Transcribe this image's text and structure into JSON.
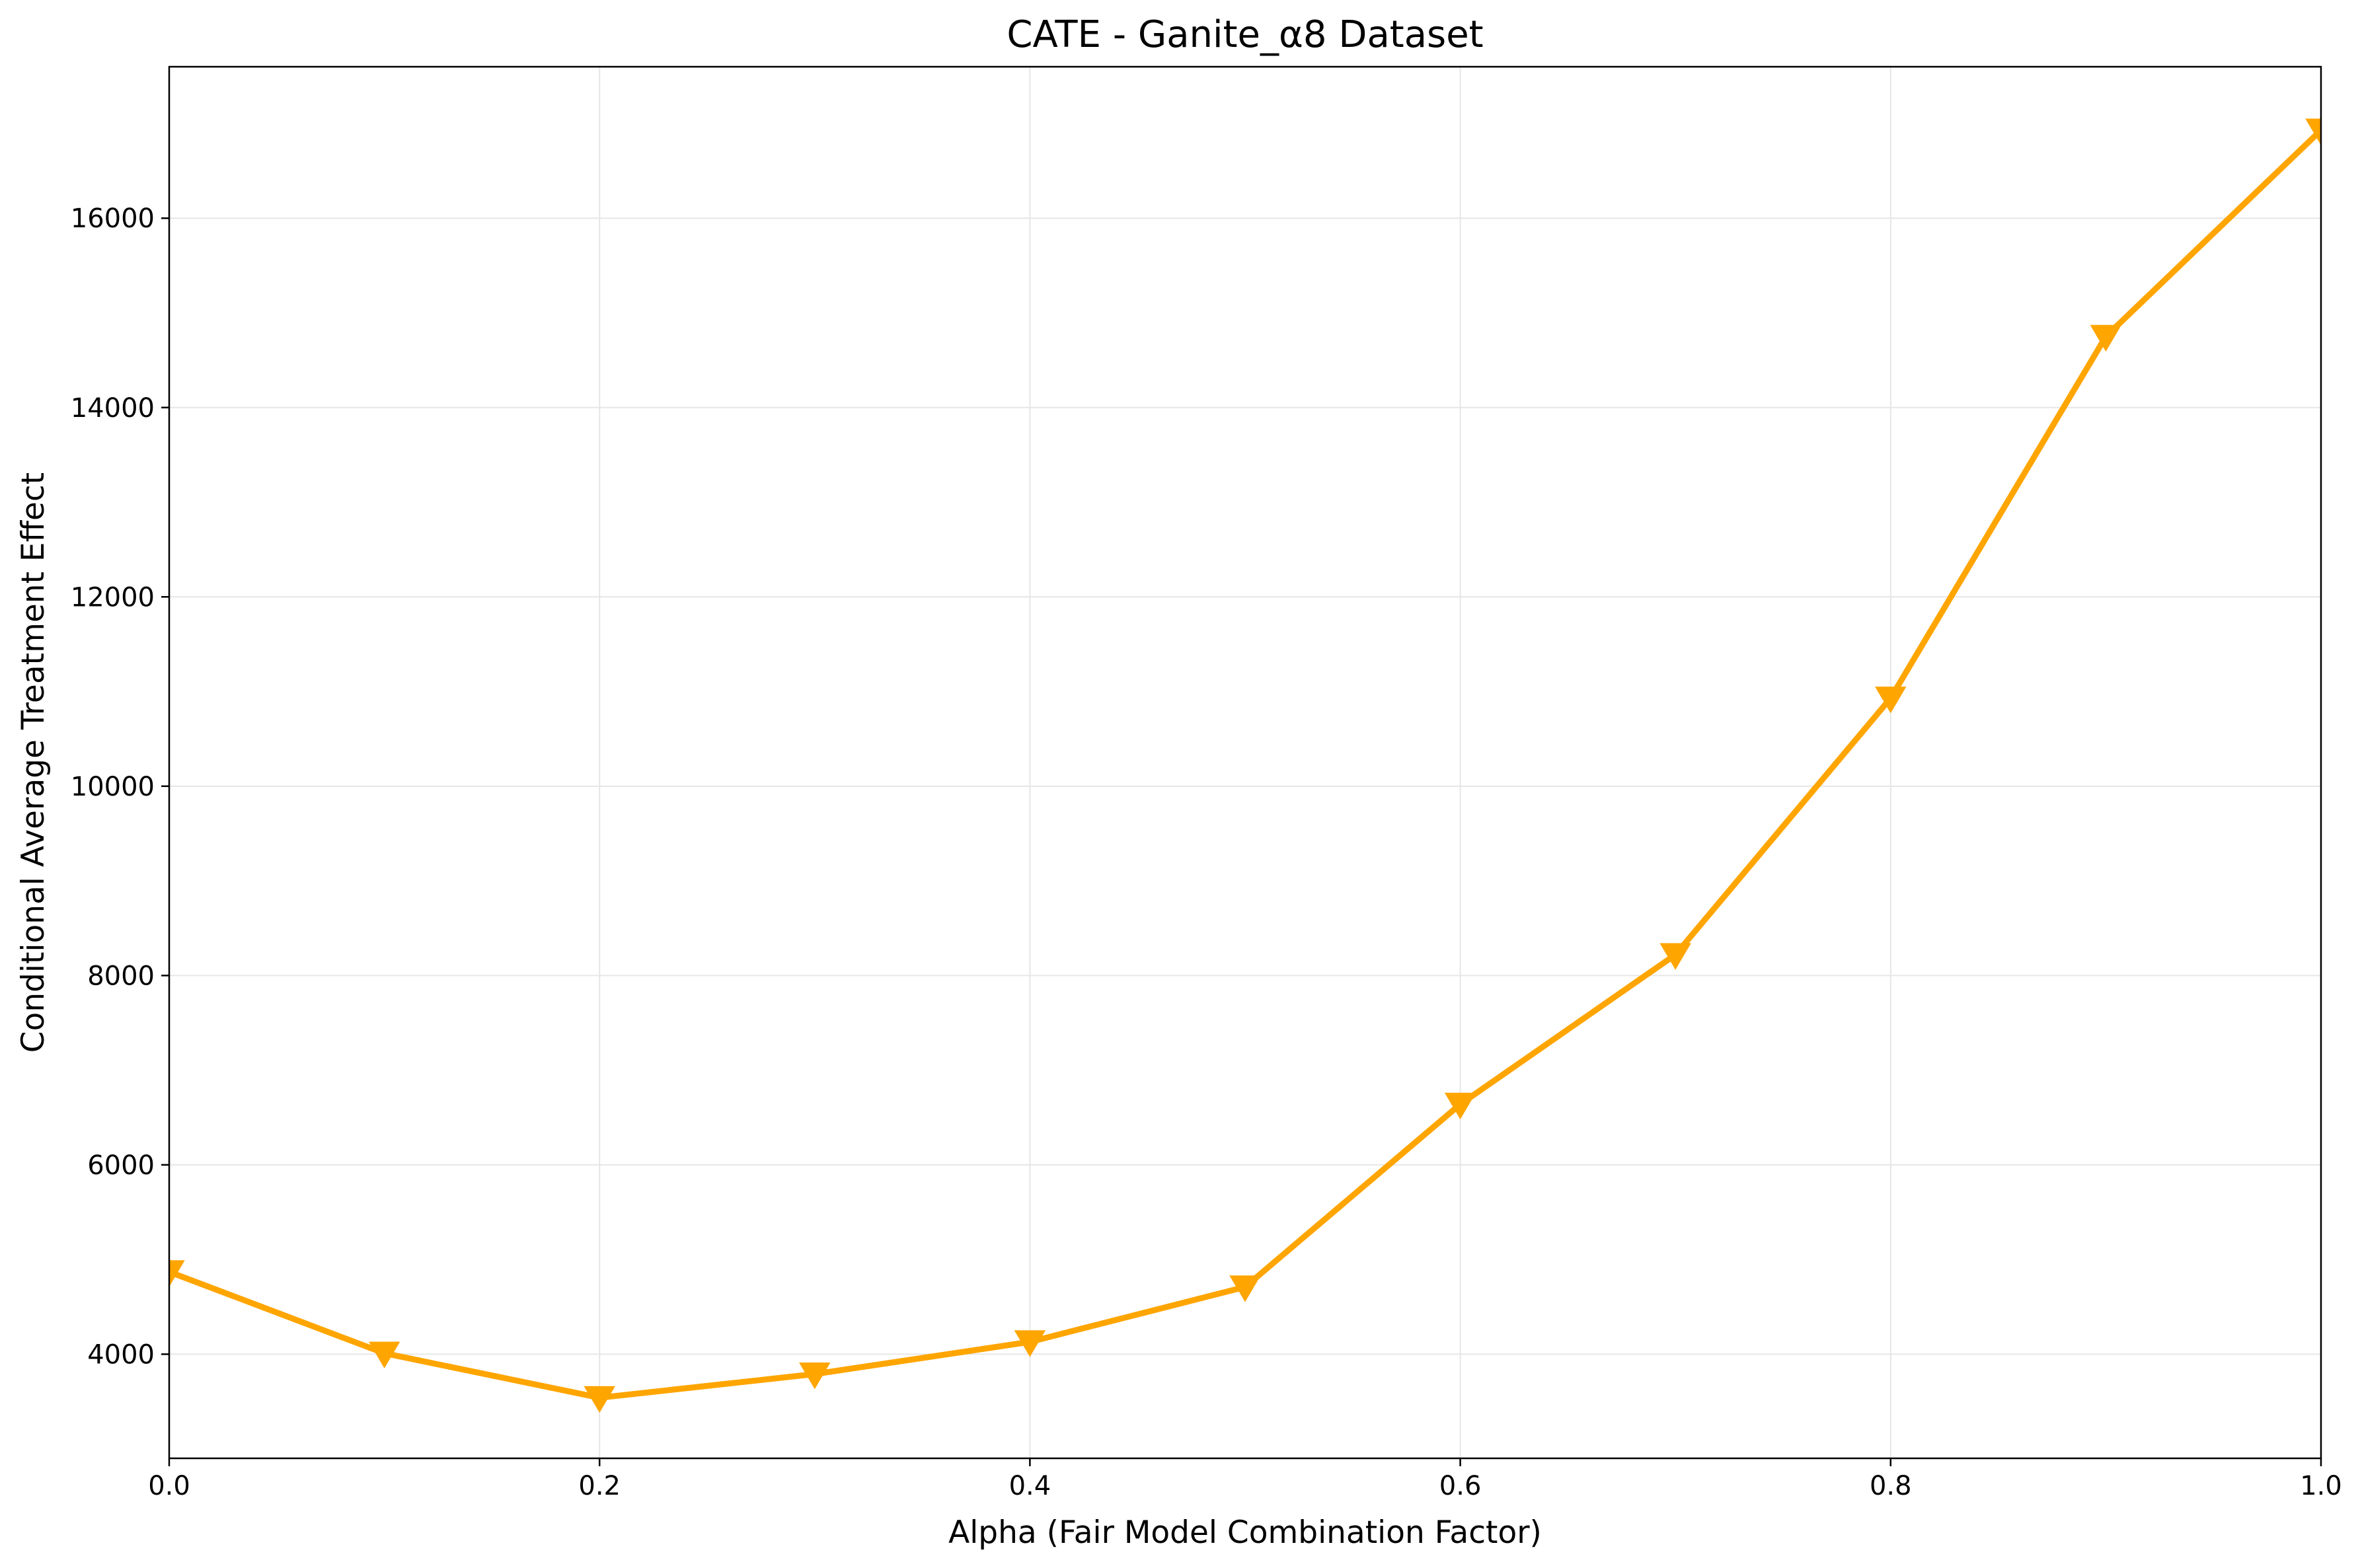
{
  "chart_data": {
    "type": "line",
    "title": "CATE - Ganite_α8 Dataset",
    "xlabel": "Alpha (Fair Model Combination Factor)",
    "ylabel": "Conditional Average Treatment Effect",
    "xlim": [
      0.0,
      1.0
    ],
    "ylim": [
      2900,
      17600
    ],
    "xticks": [
      0.0,
      0.2,
      0.4,
      0.6,
      0.8,
      1.0
    ],
    "xtick_labels": [
      "0.0",
      "0.2",
      "0.4",
      "0.6",
      "0.8",
      "1.0"
    ],
    "yticks": [
      4000,
      6000,
      8000,
      10000,
      12000,
      14000,
      16000
    ],
    "ytick_labels": [
      "4000",
      "6000",
      "8000",
      "10000",
      "12000",
      "14000",
      "16000"
    ],
    "grid": true,
    "series": [
      {
        "color": "#ffa500",
        "marker": "triangle-down",
        "x": [
          0.0,
          0.1,
          0.2,
          0.3,
          0.4,
          0.5,
          0.6,
          0.7,
          0.8,
          0.9,
          1.0
        ],
        "y": [
          4870,
          4010,
          3540,
          3790,
          4130,
          4710,
          6640,
          8220,
          10930,
          14750,
          16930
        ]
      }
    ]
  }
}
